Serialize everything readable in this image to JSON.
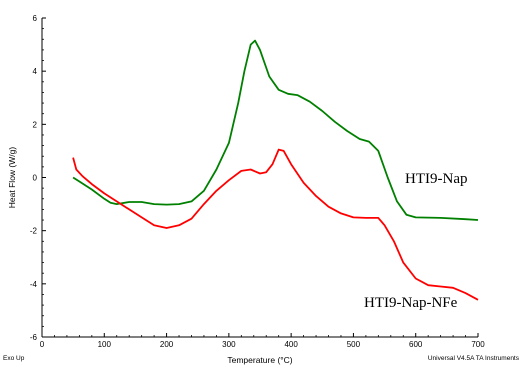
{
  "chart_data": {
    "type": "line",
    "xlabel": "Temperature (°C)",
    "ylabel": "Heat Flow (W/g)",
    "xlim": [
      0,
      700
    ],
    "ylim": [
      -6,
      6
    ],
    "x_ticks": [
      "0",
      "100",
      "200",
      "300",
      "400",
      "500",
      "600",
      "700"
    ],
    "y_ticks": [
      "6",
      "4",
      "2",
      "0",
      "-2",
      "-4",
      "-6"
    ],
    "grid": false,
    "series": [
      {
        "name": "HTI9-Nap",
        "color": "#008000",
        "points": [
          [
            50,
            0.0
          ],
          [
            60,
            -0.15
          ],
          [
            80,
            -0.45
          ],
          [
            100,
            -0.8
          ],
          [
            110,
            -0.95
          ],
          [
            120,
            -1.0
          ],
          [
            140,
            -0.92
          ],
          [
            160,
            -0.92
          ],
          [
            180,
            -1.0
          ],
          [
            200,
            -1.02
          ],
          [
            220,
            -1.0
          ],
          [
            240,
            -0.9
          ],
          [
            260,
            -0.5
          ],
          [
            280,
            0.3
          ],
          [
            300,
            1.3
          ],
          [
            315,
            2.8
          ],
          [
            325,
            4.0
          ],
          [
            335,
            5.0
          ],
          [
            342,
            5.15
          ],
          [
            350,
            4.8
          ],
          [
            365,
            3.8
          ],
          [
            380,
            3.3
          ],
          [
            395,
            3.15
          ],
          [
            410,
            3.1
          ],
          [
            430,
            2.85
          ],
          [
            450,
            2.5
          ],
          [
            470,
            2.1
          ],
          [
            490,
            1.75
          ],
          [
            510,
            1.45
          ],
          [
            525,
            1.35
          ],
          [
            540,
            1.0
          ],
          [
            555,
            0.0
          ],
          [
            570,
            -0.9
          ],
          [
            585,
            -1.4
          ],
          [
            600,
            -1.5
          ],
          [
            640,
            -1.52
          ],
          [
            680,
            -1.57
          ],
          [
            700,
            -1.6
          ]
        ]
      },
      {
        "name": "HTI9-Nap-NFe",
        "color": "#ff0000",
        "points": [
          [
            50,
            0.75
          ],
          [
            55,
            0.3
          ],
          [
            65,
            0.05
          ],
          [
            80,
            -0.25
          ],
          [
            100,
            -0.6
          ],
          [
            120,
            -0.9
          ],
          [
            140,
            -1.2
          ],
          [
            160,
            -1.5
          ],
          [
            180,
            -1.8
          ],
          [
            200,
            -1.9
          ],
          [
            220,
            -1.8
          ],
          [
            240,
            -1.55
          ],
          [
            260,
            -1.0
          ],
          [
            280,
            -0.5
          ],
          [
            300,
            -0.1
          ],
          [
            320,
            0.25
          ],
          [
            335,
            0.3
          ],
          [
            350,
            0.15
          ],
          [
            360,
            0.2
          ],
          [
            370,
            0.5
          ],
          [
            380,
            1.05
          ],
          [
            388,
            1.0
          ],
          [
            400,
            0.5
          ],
          [
            420,
            -0.2
          ],
          [
            440,
            -0.7
          ],
          [
            460,
            -1.1
          ],
          [
            480,
            -1.35
          ],
          [
            500,
            -1.5
          ],
          [
            520,
            -1.52
          ],
          [
            540,
            -1.52
          ],
          [
            550,
            -1.8
          ],
          [
            565,
            -2.4
          ],
          [
            580,
            -3.2
          ],
          [
            600,
            -3.8
          ],
          [
            620,
            -4.05
          ],
          [
            640,
            -4.1
          ],
          [
            660,
            -4.15
          ],
          [
            680,
            -4.35
          ],
          [
            700,
            -4.6
          ]
        ]
      }
    ]
  },
  "footer": {
    "left": "Exo Up",
    "right": "Universal V4.5A TA Instruments"
  }
}
